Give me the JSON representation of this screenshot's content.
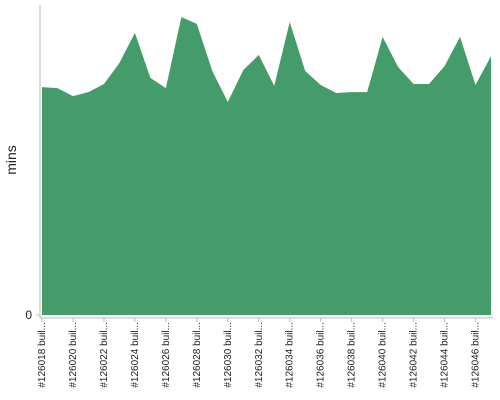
{
  "chart_data": {
    "type": "area",
    "y_label": "mins",
    "color": "#459c6b",
    "categories": [
      "#126018 buil...",
      null,
      "#126020 buil...",
      null,
      "#126022 buil...",
      null,
      "#126024 buil...",
      null,
      "#126026 buil...",
      null,
      "#126028 buil...",
      null,
      "#126030 buil...",
      null,
      "#126032 buil...",
      null,
      "#126034 buil...",
      null,
      "#126036 buil...",
      null,
      "#126038 buil...",
      null,
      "#126040 buil...",
      null,
      "#126042 buil...",
      null,
      "#126044 buil...",
      null,
      "#126046 buil...",
      null
    ],
    "values": [
      73.5,
      73.2,
      70.6,
      71.9,
      74.5,
      81.3,
      91.0,
      76.5,
      73.2,
      96.1,
      93.9,
      78.7,
      68.7,
      79.0,
      83.9,
      73.9,
      94.5,
      78.7,
      74.2,
      71.6,
      71.9,
      71.9,
      89.7,
      80.0,
      74.5,
      74.5,
      80.3,
      89.7,
      74.2,
      83.5
    ],
    "ylim": [
      0,
      100
    ],
    "yticks": [
      0
    ]
  }
}
